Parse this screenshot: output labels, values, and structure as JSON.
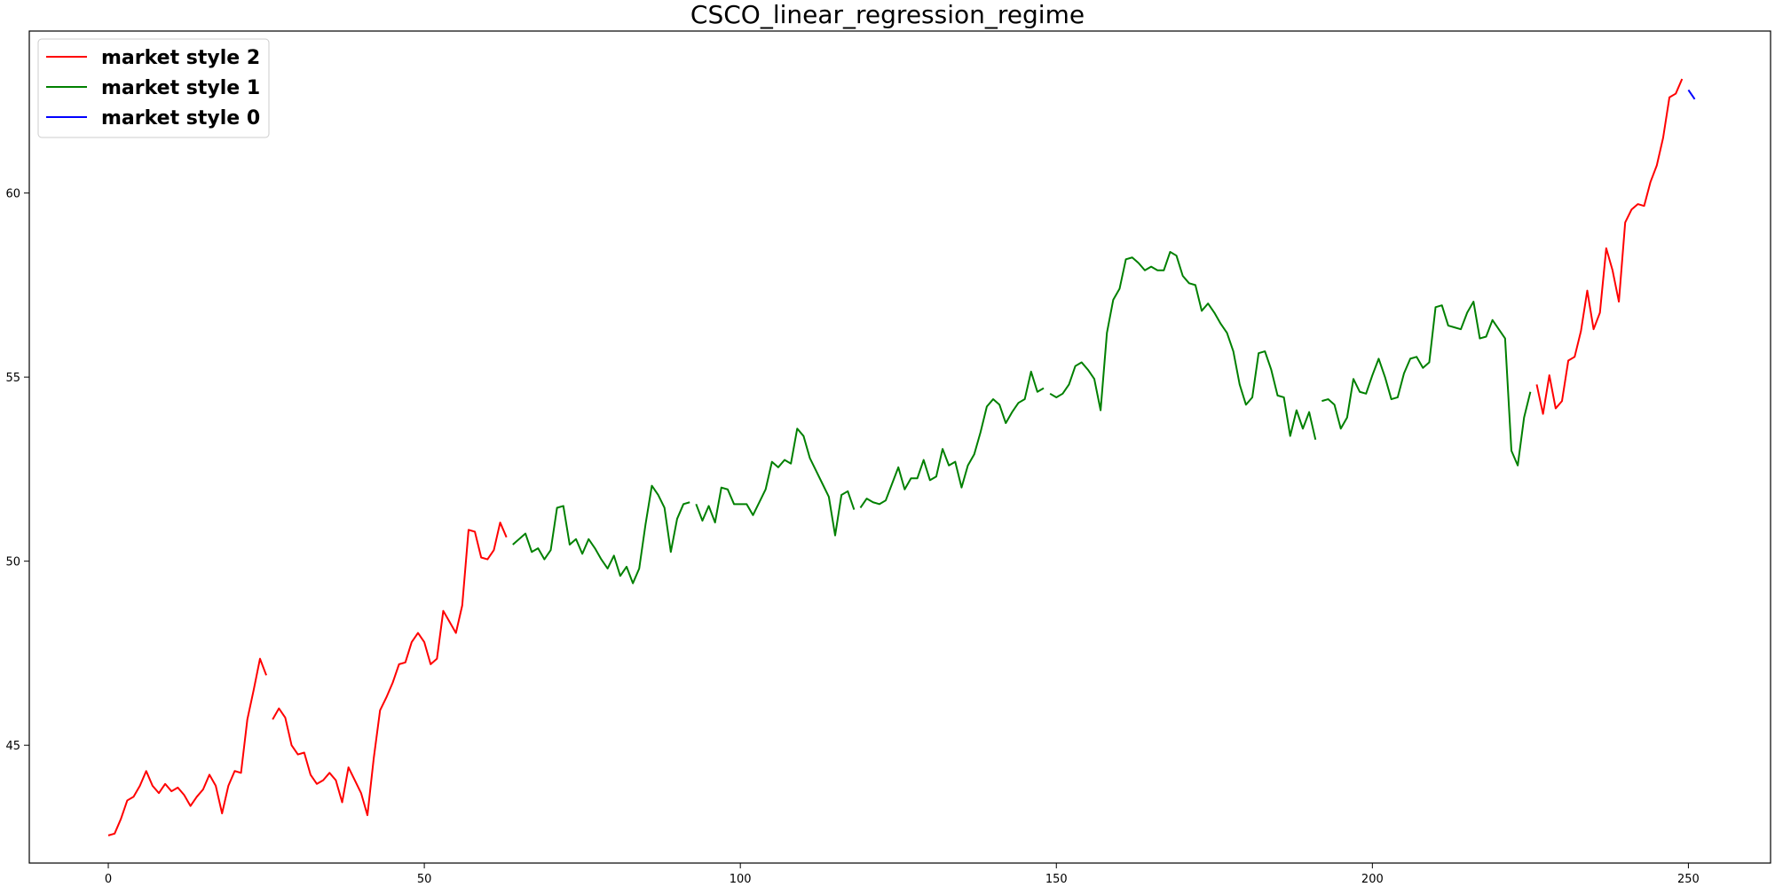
{
  "chart_data": {
    "type": "line",
    "title": "CSCO_linear_regression_regime",
    "xlabel": "",
    "ylabel": "",
    "xlim": [
      -12.5,
      263
    ],
    "ylim": [
      41.8,
      64.4
    ],
    "xticks": [
      0,
      50,
      100,
      150,
      200,
      250
    ],
    "yticks": [
      45,
      50,
      55,
      60
    ],
    "grid": false,
    "legend_position": "top-left",
    "legend": [
      {
        "label": "market style 2",
        "color": "#ff0000"
      },
      {
        "label": "market style 1",
        "color": "#008000"
      },
      {
        "label": "market style 0",
        "color": "#0000ff"
      }
    ],
    "segments": [
      {
        "series": "market style 2",
        "color": "#ff0000",
        "points": [
          [
            0,
            42.55
          ],
          [
            1,
            42.6
          ],
          [
            2,
            43.0
          ],
          [
            3,
            43.5
          ],
          [
            4,
            43.6
          ],
          [
            5,
            43.9
          ],
          [
            6,
            44.3
          ],
          [
            7,
            43.9
          ],
          [
            8,
            43.7
          ],
          [
            9,
            43.95
          ],
          [
            10,
            43.75
          ],
          [
            11,
            43.85
          ],
          [
            12,
            43.65
          ],
          [
            13,
            43.35
          ],
          [
            14,
            43.6
          ],
          [
            15,
            43.8
          ],
          [
            16,
            44.2
          ],
          [
            17,
            43.9
          ],
          [
            18,
            43.15
          ],
          [
            19,
            43.9
          ],
          [
            20,
            44.3
          ],
          [
            21,
            44.25
          ],
          [
            22,
            45.7
          ],
          [
            23,
            46.5
          ],
          [
            24,
            47.35
          ],
          [
            25,
            46.9
          ]
        ]
      },
      {
        "series": "market style 2",
        "color": "#ff0000",
        "points": [
          [
            26,
            45.7
          ],
          [
            27,
            46.0
          ],
          [
            28,
            45.75
          ],
          [
            29,
            45.0
          ],
          [
            30,
            44.75
          ],
          [
            31,
            44.8
          ],
          [
            32,
            44.2
          ],
          [
            33,
            43.95
          ],
          [
            34,
            44.05
          ],
          [
            35,
            44.25
          ],
          [
            36,
            44.05
          ],
          [
            37,
            43.45
          ],
          [
            38,
            44.4
          ],
          [
            39,
            44.05
          ],
          [
            40,
            43.7
          ],
          [
            41,
            43.1
          ],
          [
            42,
            44.65
          ],
          [
            43,
            45.95
          ],
          [
            44,
            46.3
          ],
          [
            45,
            46.7
          ],
          [
            46,
            47.2
          ],
          [
            47,
            47.25
          ],
          [
            48,
            47.8
          ],
          [
            49,
            48.05
          ],
          [
            50,
            47.8
          ],
          [
            51,
            47.2
          ],
          [
            52,
            47.35
          ],
          [
            53,
            48.65
          ],
          [
            54,
            48.35
          ],
          [
            55,
            48.05
          ],
          [
            56,
            48.8
          ],
          [
            57,
            50.85
          ],
          [
            58,
            50.8
          ],
          [
            59,
            50.1
          ],
          [
            60,
            50.05
          ],
          [
            61,
            50.3
          ],
          [
            62,
            51.05
          ],
          [
            63,
            50.65
          ]
        ]
      },
      {
        "series": "market style 1",
        "color": "#008000",
        "points": [
          [
            64,
            50.45
          ],
          [
            65,
            50.6
          ],
          [
            66,
            50.75
          ],
          [
            67,
            50.25
          ],
          [
            68,
            50.35
          ],
          [
            69,
            50.05
          ],
          [
            70,
            50.3
          ],
          [
            71,
            51.45
          ],
          [
            72,
            51.5
          ],
          [
            73,
            50.45
          ],
          [
            74,
            50.6
          ],
          [
            75,
            50.2
          ],
          [
            76,
            50.6
          ],
          [
            77,
            50.35
          ],
          [
            78,
            50.05
          ],
          [
            79,
            49.8
          ],
          [
            80,
            50.15
          ],
          [
            81,
            49.6
          ],
          [
            82,
            49.85
          ],
          [
            83,
            49.4
          ],
          [
            84,
            49.8
          ],
          [
            85,
            51.0
          ],
          [
            86,
            52.05
          ],
          [
            87,
            51.8
          ],
          [
            88,
            51.45
          ],
          [
            89,
            50.25
          ],
          [
            90,
            51.15
          ],
          [
            91,
            51.55
          ],
          [
            92,
            51.6
          ]
        ]
      },
      {
        "series": "market style 1",
        "color": "#008000",
        "points": [
          [
            93,
            51.55
          ],
          [
            94,
            51.1
          ],
          [
            95,
            51.5
          ],
          [
            96,
            51.05
          ],
          [
            97,
            52.0
          ],
          [
            98,
            51.95
          ],
          [
            99,
            51.55
          ],
          [
            100,
            51.55
          ],
          [
            101,
            51.55
          ],
          [
            102,
            51.25
          ],
          [
            103,
            51.6
          ],
          [
            104,
            51.95
          ],
          [
            105,
            52.7
          ],
          [
            106,
            52.55
          ],
          [
            107,
            52.75
          ],
          [
            108,
            52.65
          ],
          [
            109,
            53.6
          ],
          [
            110,
            53.4
          ],
          [
            111,
            52.8
          ],
          [
            112,
            52.45
          ],
          [
            113,
            52.1
          ],
          [
            114,
            51.75
          ],
          [
            115,
            50.7
          ],
          [
            116,
            51.8
          ],
          [
            117,
            51.9
          ],
          [
            118,
            51.4
          ]
        ]
      },
      {
        "series": "market style 1",
        "color": "#008000",
        "points": [
          [
            119,
            51.45
          ],
          [
            120,
            51.7
          ],
          [
            121,
            51.6
          ],
          [
            122,
            51.55
          ],
          [
            123,
            51.65
          ],
          [
            124,
            52.1
          ],
          [
            125,
            52.55
          ],
          [
            126,
            51.95
          ],
          [
            127,
            52.25
          ],
          [
            128,
            52.25
          ],
          [
            129,
            52.75
          ],
          [
            130,
            52.2
          ],
          [
            131,
            52.3
          ],
          [
            132,
            53.05
          ],
          [
            133,
            52.6
          ],
          [
            134,
            52.7
          ],
          [
            135,
            52.0
          ],
          [
            136,
            52.6
          ],
          [
            137,
            52.9
          ],
          [
            138,
            53.5
          ],
          [
            139,
            54.2
          ],
          [
            140,
            54.4
          ],
          [
            141,
            54.25
          ],
          [
            142,
            53.75
          ],
          [
            143,
            54.05
          ],
          [
            144,
            54.3
          ],
          [
            145,
            54.4
          ],
          [
            146,
            55.15
          ],
          [
            147,
            54.6
          ],
          [
            148,
            54.7
          ]
        ]
      },
      {
        "series": "market style 1",
        "color": "#008000",
        "points": [
          [
            149,
            54.55
          ],
          [
            150,
            54.45
          ],
          [
            151,
            54.55
          ],
          [
            152,
            54.8
          ],
          [
            153,
            55.3
          ],
          [
            154,
            55.4
          ],
          [
            155,
            55.2
          ],
          [
            156,
            54.95
          ],
          [
            157,
            54.1
          ],
          [
            158,
            56.2
          ],
          [
            159,
            57.1
          ],
          [
            160,
            57.4
          ],
          [
            161,
            58.2
          ],
          [
            162,
            58.25
          ],
          [
            163,
            58.1
          ],
          [
            164,
            57.9
          ],
          [
            165,
            58.0
          ],
          [
            166,
            57.9
          ],
          [
            167,
            57.9
          ],
          [
            168,
            58.4
          ],
          [
            169,
            58.3
          ],
          [
            170,
            57.75
          ],
          [
            171,
            57.55
          ],
          [
            172,
            57.5
          ],
          [
            173,
            56.8
          ],
          [
            174,
            57.0
          ],
          [
            175,
            56.75
          ],
          [
            176,
            56.45
          ],
          [
            177,
            56.2
          ],
          [
            178,
            55.7
          ],
          [
            179,
            54.8
          ],
          [
            180,
            54.25
          ],
          [
            181,
            54.45
          ],
          [
            182,
            55.65
          ],
          [
            183,
            55.7
          ],
          [
            184,
            55.2
          ],
          [
            185,
            54.5
          ],
          [
            186,
            54.45
          ],
          [
            187,
            53.4
          ],
          [
            188,
            54.1
          ],
          [
            189,
            53.6
          ],
          [
            190,
            54.05
          ],
          [
            191,
            53.3
          ]
        ]
      },
      {
        "series": "market style 1",
        "color": "#008000",
        "points": [
          [
            192,
            54.35
          ],
          [
            193,
            54.4
          ],
          [
            194,
            54.25
          ],
          [
            195,
            53.6
          ],
          [
            196,
            53.9
          ],
          [
            197,
            54.95
          ],
          [
            198,
            54.6
          ],
          [
            199,
            54.55
          ],
          [
            200,
            55.05
          ],
          [
            201,
            55.5
          ],
          [
            202,
            55.0
          ],
          [
            203,
            54.4
          ],
          [
            204,
            54.45
          ],
          [
            205,
            55.1
          ],
          [
            206,
            55.5
          ],
          [
            207,
            55.55
          ],
          [
            208,
            55.25
          ],
          [
            209,
            55.4
          ],
          [
            210,
            56.9
          ],
          [
            211,
            56.95
          ],
          [
            212,
            56.4
          ],
          [
            213,
            56.35
          ],
          [
            214,
            56.3
          ],
          [
            215,
            56.75
          ],
          [
            216,
            57.05
          ],
          [
            217,
            56.05
          ],
          [
            218,
            56.1
          ],
          [
            219,
            56.55
          ],
          [
            220,
            56.3
          ],
          [
            221,
            56.05
          ],
          [
            222,
            53.0
          ],
          [
            223,
            52.6
          ],
          [
            224,
            53.9
          ],
          [
            225,
            54.6
          ]
        ]
      },
      {
        "series": "market style 2",
        "color": "#ff0000",
        "points": [
          [
            226,
            54.8
          ],
          [
            227,
            54.0
          ],
          [
            228,
            55.05
          ],
          [
            229,
            54.15
          ],
          [
            230,
            54.35
          ],
          [
            231,
            55.45
          ],
          [
            232,
            55.55
          ],
          [
            233,
            56.25
          ],
          [
            234,
            57.35
          ],
          [
            235,
            56.3
          ],
          [
            236,
            56.75
          ],
          [
            237,
            58.5
          ],
          [
            238,
            57.9
          ],
          [
            239,
            57.05
          ],
          [
            240,
            59.2
          ],
          [
            241,
            59.55
          ],
          [
            242,
            59.7
          ],
          [
            243,
            59.65
          ],
          [
            244,
            60.3
          ],
          [
            245,
            60.75
          ],
          [
            246,
            61.5
          ],
          [
            247,
            62.6
          ],
          [
            248,
            62.7
          ],
          [
            249,
            63.1
          ]
        ]
      },
      {
        "series": "market style 0",
        "color": "#0000ff",
        "points": [
          [
            250,
            62.8
          ],
          [
            251,
            62.55
          ]
        ]
      }
    ]
  }
}
